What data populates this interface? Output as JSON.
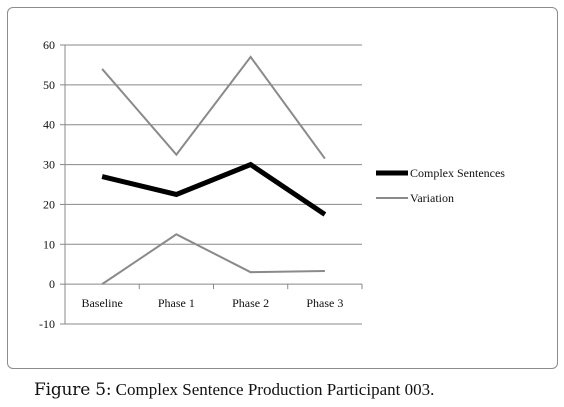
{
  "chart_data": {
    "type": "line",
    "categories": [
      "Baseline",
      "Phase 1",
      "Phase 2",
      "Phase 3"
    ],
    "series": [
      {
        "name": "",
        "values": [
          54,
          32.5,
          57,
          31.5
        ],
        "color": "#8a8a8a",
        "role": "upper-bound"
      },
      {
        "name": "Complex Sentences",
        "values": [
          27,
          22.5,
          30,
          17.5
        ],
        "color": "#000000",
        "role": "main"
      },
      {
        "name": "Variation",
        "values": [
          0,
          12.5,
          3,
          3.3
        ],
        "color": "#8a8a8a",
        "role": "lower-bound"
      }
    ],
    "ylim": [
      -10,
      60
    ],
    "yticks": [
      -10,
      0,
      10,
      20,
      30,
      40,
      50,
      60
    ],
    "grid": true,
    "legend": "right"
  },
  "caption": {
    "label": "Figure 5:",
    "text": " Complex Sentence Production Participant 003."
  }
}
